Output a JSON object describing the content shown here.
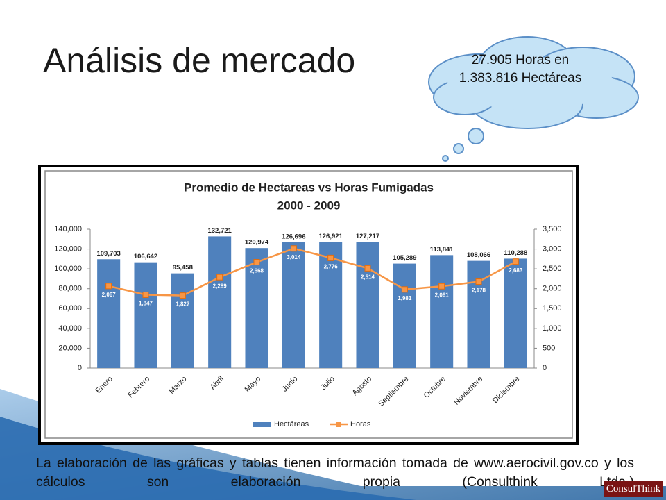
{
  "slide_title": "Análisis de mercado",
  "cloud_text": "27.905 Horas en 1.383.816 Hectáreas",
  "footnote": "La elaboración de las gráficas y tablas tienen información tomada de www.aerocivil.gov.co y los cálculos son elaboración propia (Consulthink Ltda.)",
  "logo": "ConsulThink",
  "chart_data": {
    "type": "bar-line",
    "title": "Promedio de Hectareas vs Horas Fumigadas",
    "subtitle": "2000 - 2009",
    "categories": [
      "Enero",
      "Febrero",
      "Marzo",
      "Abril",
      "Mayo",
      "Junio",
      "Julio",
      "Agosto",
      "Septiembre",
      "Octubre",
      "Noviembre",
      "Diciembre"
    ],
    "series": [
      {
        "name": "Hectáreas",
        "type": "bar",
        "color": "#4f81bd",
        "values": [
          109703,
          106642,
          95458,
          132721,
          120974,
          126696,
          126921,
          127217,
          105289,
          113841,
          108066,
          110288
        ],
        "value_labels": [
          "109,703",
          "106,642",
          "95,458",
          "132,721",
          "120,974",
          "126,696",
          "126,921",
          "127,217",
          "105,289",
          "113,841",
          "108,066",
          "110,288"
        ]
      },
      {
        "name": "Horas",
        "type": "line",
        "axis": "y2",
        "color": "#f79646",
        "values": [
          2067,
          1847,
          1827,
          2289,
          2668,
          3014,
          2776,
          2514,
          1981,
          2061,
          2178,
          2683
        ],
        "value_labels": [
          "2,067",
          "1,847",
          "1,827",
          "2,289",
          "2,668",
          "3,014",
          "2,776",
          "2,514",
          "1,981",
          "2,061",
          "2,178",
          "2,683"
        ]
      }
    ],
    "ylim": [
      0,
      140000
    ],
    "yticks": [
      0,
      {
        "value": 20000,
        "label": "20,000"
      },
      {
        "value": 40000,
        "label": "40,000"
      },
      {
        "value": 60000,
        "label": "60,000"
      },
      {
        "value": 80000,
        "label": "80,000"
      },
      {
        "value": 100000,
        "label": "100,000"
      },
      {
        "value": 120000,
        "label": "120,000"
      },
      {
        "value": 140000,
        "label": "140,000"
      }
    ],
    "y2lim": [
      0,
      3500
    ],
    "y2ticks": [
      0,
      500,
      {
        "value": 1000,
        "label": "1,000"
      },
      {
        "value": 1500,
        "label": "1,500"
      },
      {
        "value": 2000,
        "label": "2,000"
      },
      {
        "value": 2500,
        "label": "2,500"
      },
      {
        "value": 3000,
        "label": "3,000"
      },
      {
        "value": 3500,
        "label": "3,500"
      }
    ],
    "grid": false,
    "legend": "bottom"
  }
}
